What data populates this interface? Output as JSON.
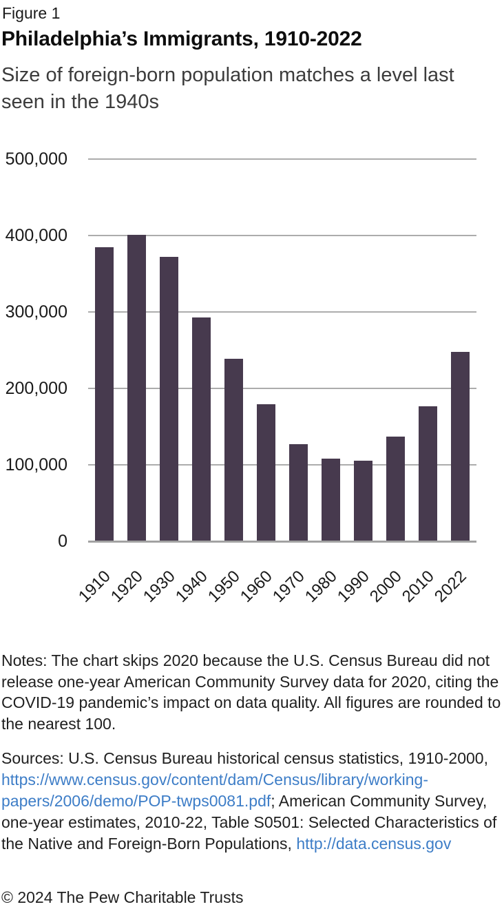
{
  "figure_label": "Figure 1",
  "chart_data": {
    "type": "bar",
    "title": "Philadelphia’s Immigrants, 1910-2022",
    "subtitle": "Size of foreign-born population matches a level last seen in the 1940s",
    "categories": [
      "1910",
      "1920",
      "1930",
      "1940",
      "1950",
      "1960",
      "1970",
      "1980",
      "1990",
      "2000",
      "2010",
      "2022"
    ],
    "values": [
      384700,
      400700,
      372000,
      293000,
      239000,
      179000,
      127000,
      108000,
      105000,
      137000,
      177000,
      248000
    ],
    "xlabel": "",
    "ylabel": "",
    "ylim": [
      0,
      500000
    ],
    "yticks": [
      0,
      100000,
      200000,
      300000,
      400000,
      500000
    ],
    "ytick_labels": [
      "0",
      "100,000",
      "200,000",
      "300,000",
      "400,000",
      "500,000"
    ],
    "grid": "horizontal",
    "legend": "none",
    "bar_color": "#473A4E",
    "gridline_color": "#ACACAC",
    "axis_line_color": "#A2A2A2"
  },
  "notes": "Notes: The chart skips 2020 because the U.S. Census Bureau did not release one-year American Community Survey data for 2020, citing the COVID-19 pandemic’s impact on data quality. All figures are rounded to the nearest 100.",
  "sources": {
    "parts": [
      {
        "type": "text",
        "text": "Sources: U.S. Census Bureau historical census statistics, 1910-2000, "
      },
      {
        "type": "link",
        "text": "https://www.census.gov/content/dam/Census/library/working-papers/2006/demo/POP-twps0081.pdf"
      },
      {
        "type": "text",
        "text": "; American Community Survey, one-year estimates, 2010-22, Table S0501: Selected Characteristics of the Native and Foreign-Born Populations, "
      },
      {
        "type": "link",
        "text": "http://data.census.gov"
      }
    ]
  },
  "copyright": "© 2024 The Pew Charitable Trusts",
  "colors": {
    "link": "#3D7DC7",
    "text": "#1F1F1F"
  }
}
